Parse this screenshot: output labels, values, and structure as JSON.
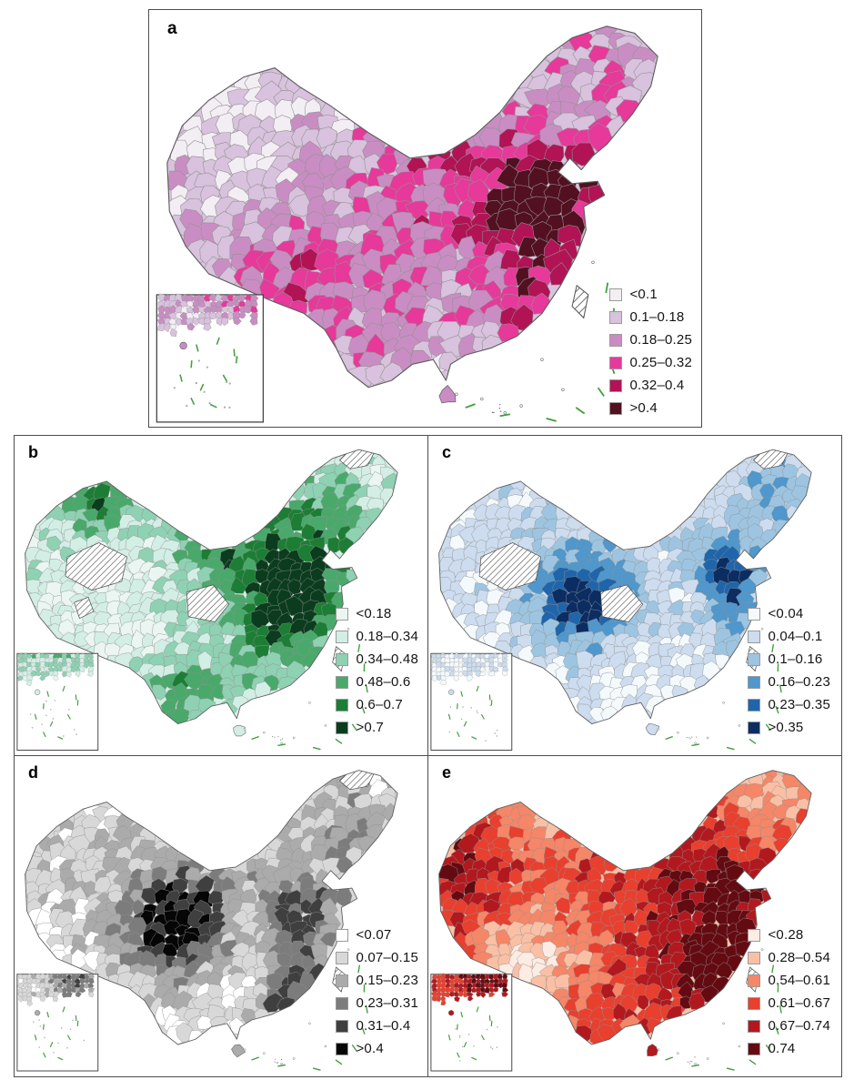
{
  "figure": {
    "background": "#ffffff",
    "panel_border_color": "#4d4d4d",
    "region_border_color": "#919191",
    "outline_color": "#5f5f5f",
    "nine_dash_line_color": "#3f9e3a",
    "hatch_line_color": "#4a4a4a"
  },
  "panels": [
    {
      "id": "a",
      "label": "a",
      "legend": [
        {
          "label": "<0.1",
          "color": "#f3edf4"
        },
        {
          "label": "0.1–0.18",
          "color": "#d8c2dd"
        },
        {
          "label": "0.18–0.25",
          "color": "#c98dc3"
        },
        {
          "label": "0.25–0.32",
          "color": "#e6399a"
        },
        {
          "label": "0.32–0.4",
          "color": "#b11355"
        },
        {
          "label": ">0.4",
          "color": "#531021"
        }
      ],
      "hatched_areas": [
        "taiwan"
      ]
    },
    {
      "id": "b",
      "label": "b",
      "legend": [
        {
          "label": "<0.18",
          "color": "#ebf6f2"
        },
        {
          "label": "0.18–0.34",
          "color": "#d3eee5"
        },
        {
          "label": "0.34–0.48",
          "color": "#8fd1b3"
        },
        {
          "label": "0.48–0.6",
          "color": "#49a96b"
        },
        {
          "label": "0.6–0.7",
          "color": "#1c7e34"
        },
        {
          "label": ">0.7",
          "color": "#0b3c1e"
        }
      ],
      "hatched_areas": [
        "west-large",
        "west-small",
        "central",
        "northeast-corner",
        "taiwan"
      ]
    },
    {
      "id": "c",
      "label": "c",
      "legend": [
        {
          "label": "<0.04",
          "color": "#f4f9fc"
        },
        {
          "label": "0.04–0.1",
          "color": "#cddcee"
        },
        {
          "label": "0.1–0.16",
          "color": "#9dc5e1"
        },
        {
          "label": "0.16–0.23",
          "color": "#4f97cc"
        },
        {
          "label": "0.23–0.35",
          "color": "#1f65ab"
        },
        {
          "label": ">0.35",
          "color": "#0c2d62"
        }
      ],
      "hatched_areas": [
        "west-large",
        "central",
        "northeast-corner",
        "taiwan"
      ]
    },
    {
      "id": "d",
      "label": "d",
      "legend": [
        {
          "label": "<0.07",
          "color": "#ffffff"
        },
        {
          "label": "0.07–0.15",
          "color": "#d8d8d8"
        },
        {
          "label": "0.15–0.23",
          "color": "#ababab"
        },
        {
          "label": "0.23–0.31",
          "color": "#7c7c7c"
        },
        {
          "label": "0.31–0.4",
          "color": "#3f3f3f"
        },
        {
          "label": ">0.4",
          "color": "#060606"
        }
      ],
      "hatched_areas": [
        "northeast-corner",
        "taiwan"
      ]
    },
    {
      "id": "e",
      "label": "e",
      "legend": [
        {
          "label": "<0.28",
          "color": "#fdece3"
        },
        {
          "label": "0.28–0.54",
          "color": "#f9c0a6"
        },
        {
          "label": "0.54–0.61",
          "color": "#f58667"
        },
        {
          "label": "0.61–0.67",
          "color": "#e83f2e"
        },
        {
          "label": "0.67–0.74",
          "color": "#b2191f"
        },
        {
          "label": "0.74",
          "color": "#640b12"
        }
      ],
      "hatched_areas": [
        "taiwan"
      ]
    }
  ]
}
